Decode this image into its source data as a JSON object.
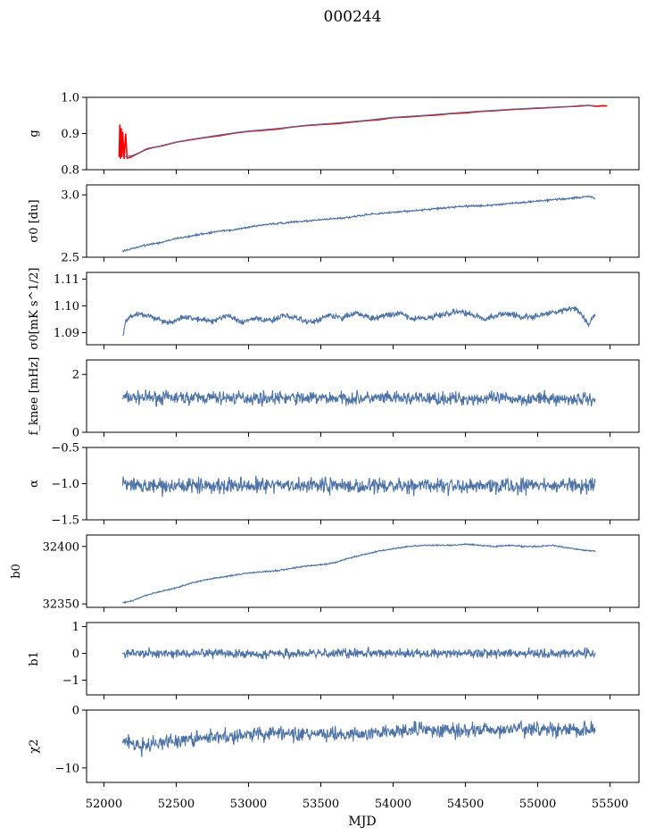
{
  "figure": {
    "title": "000244",
    "xlabel": "MJD",
    "xticks": [
      "52000",
      "52500",
      "53000",
      "53500",
      "54000",
      "54500",
      "55000",
      "55500"
    ]
  },
  "chart_data": [
    {
      "type": "line",
      "ylabel": "g",
      "xlim": [
        51880,
        55700
      ],
      "ylim": [
        0.8,
        1.0
      ],
      "yticks": [
        "0.8",
        "0.9",
        "1.0"
      ],
      "series": [
        {
          "color": "#ff0000",
          "x": [
            52105,
            52110,
            52115,
            52120,
            52125,
            52130,
            52140,
            52150,
            52160,
            52170,
            52185,
            52200,
            52250,
            52300,
            52400,
            52500,
            52600,
            52700,
            52800,
            52900,
            53000,
            53100,
            53200,
            53300,
            53400,
            53500,
            53600,
            53700,
            53800,
            53900,
            54000,
            54100,
            54200,
            54300,
            54400,
            54500,
            54600,
            54700,
            54800,
            54900,
            55000,
            55100,
            55200,
            55300,
            55350,
            55400,
            55450,
            55480
          ],
          "y": [
            0.835,
            0.925,
            0.83,
            0.915,
            0.835,
            0.905,
            0.83,
            0.9,
            0.832,
            0.833,
            0.834,
            0.838,
            0.848,
            0.858,
            0.866,
            0.876,
            0.883,
            0.889,
            0.894,
            0.901,
            0.906,
            0.909,
            0.912,
            0.918,
            0.922,
            0.925,
            0.927,
            0.931,
            0.935,
            0.938,
            0.944,
            0.946,
            0.949,
            0.951,
            0.955,
            0.957,
            0.961,
            0.963,
            0.966,
            0.968,
            0.97,
            0.972,
            0.974,
            0.976,
            0.978,
            0.975,
            0.977,
            0.976
          ]
        },
        {
          "color": "#4c72a6",
          "x": [
            52130,
            52200,
            52300,
            52400,
            52500,
            52600,
            52700,
            52800,
            52900,
            53000,
            53200,
            53400,
            53600,
            53800,
            54000,
            54200,
            54400,
            54600,
            54800,
            55000,
            55200,
            55300,
            55400
          ],
          "y": [
            0.834,
            0.84,
            0.856,
            0.867,
            0.876,
            0.884,
            0.89,
            0.896,
            0.902,
            0.907,
            0.914,
            0.923,
            0.929,
            0.936,
            0.945,
            0.95,
            0.956,
            0.962,
            0.967,
            0.971,
            0.974,
            0.978,
            0.977
          ]
        }
      ]
    },
    {
      "type": "line",
      "ylabel": "σ0 [du]",
      "xlim": [
        51880,
        55700
      ],
      "ylim": [
        2.5,
        3.08
      ],
      "yticks": [
        "2.5",
        "3.0"
      ],
      "series": [
        {
          "color": "#4c72a6",
          "noise": 0.005,
          "x": [
            52130,
            52200,
            52300,
            52400,
            52500,
            52600,
            52700,
            52800,
            52900,
            53000,
            53100,
            53200,
            53300,
            53400,
            53500,
            53600,
            53700,
            53800,
            53900,
            54000,
            54100,
            54200,
            54300,
            54400,
            54500,
            54600,
            54700,
            54800,
            54900,
            55000,
            55100,
            55200,
            55300,
            55350,
            55400
          ],
          "y": [
            2.55,
            2.57,
            2.6,
            2.62,
            2.65,
            2.67,
            2.69,
            2.71,
            2.72,
            2.74,
            2.76,
            2.77,
            2.78,
            2.79,
            2.8,
            2.81,
            2.82,
            2.84,
            2.85,
            2.86,
            2.87,
            2.88,
            2.89,
            2.9,
            2.91,
            2.91,
            2.92,
            2.93,
            2.94,
            2.95,
            2.96,
            2.97,
            2.98,
            2.99,
            2.97
          ]
        }
      ]
    },
    {
      "type": "line",
      "ylabel": "σ0[mK s^1/2]",
      "xlim": [
        51880,
        55700
      ],
      "ylim": [
        1.0855,
        1.1125
      ],
      "yticks": [
        "1.09",
        "1.10",
        "1.11"
      ],
      "series": [
        {
          "color": "#4c72a6",
          "noise": 0.0008,
          "x": [
            52130,
            52150,
            52180,
            52250,
            52350,
            52450,
            52550,
            52650,
            52750,
            52850,
            52950,
            53050,
            53150,
            53250,
            53350,
            53450,
            53550,
            53650,
            53750,
            53850,
            53950,
            54050,
            54150,
            54250,
            54350,
            54450,
            54550,
            54650,
            54750,
            54850,
            54950,
            55050,
            55150,
            55250,
            55300,
            55350,
            55400
          ],
          "y": [
            1.0885,
            1.094,
            1.096,
            1.097,
            1.0955,
            1.0935,
            1.096,
            1.095,
            1.0945,
            1.0965,
            1.094,
            1.0955,
            1.0945,
            1.0965,
            1.095,
            1.094,
            1.0965,
            1.0955,
            1.0975,
            1.095,
            1.0965,
            1.097,
            1.095,
            1.0955,
            1.097,
            1.098,
            1.0965,
            1.095,
            1.097,
            1.0965,
            1.0955,
            1.097,
            1.098,
            1.0995,
            1.097,
            1.093,
            1.0975
          ]
        }
      ]
    },
    {
      "type": "line",
      "ylabel": "f_knee [mHz]",
      "xlim": [
        51880,
        55700
      ],
      "ylim": [
        0,
        2.5
      ],
      "yticks": [
        "0",
        "2"
      ],
      "series": [
        {
          "color": "#4c72a6",
          "noise": 0.16,
          "seed": 7,
          "x": [
            52130,
            55400
          ],
          "y": [
            1.2,
            1.15
          ]
        }
      ]
    },
    {
      "type": "line",
      "ylabel": "α",
      "xlim": [
        51880,
        55700
      ],
      "ylim": [
        -1.5,
        -0.5
      ],
      "yticks": [
        "−1.5",
        "−1.0",
        "−0.5"
      ],
      "series": [
        {
          "color": "#4c72a6",
          "noise": 0.075,
          "seed": 13,
          "x": [
            52130,
            55400
          ],
          "y": [
            -1.03,
            -1.03
          ]
        }
      ]
    },
    {
      "type": "line",
      "ylabel": "b0",
      "xlim": [
        51880,
        55700
      ],
      "ylim": [
        32347,
        32410
      ],
      "yticks": [
        "32350",
        "32400"
      ],
      "series": [
        {
          "color": "#4c72a6",
          "noise": 0.4,
          "x": [
            52130,
            52200,
            52300,
            52400,
            52500,
            52600,
            52700,
            52800,
            52900,
            53000,
            53100,
            53200,
            53300,
            53400,
            53500,
            53600,
            53700,
            53800,
            53900,
            54000,
            54100,
            54200,
            54300,
            54400,
            54500,
            54600,
            54700,
            54800,
            54900,
            55000,
            55100,
            55200,
            55300,
            55400
          ],
          "y": [
            32351,
            32353,
            32358,
            32361,
            32364,
            32368,
            32371,
            32373,
            32375,
            32377,
            32378,
            32379,
            32381,
            32383,
            32384,
            32386,
            32390,
            32393,
            32396,
            32398,
            32400,
            32401,
            32401,
            32401,
            32402,
            32401,
            32400,
            32401,
            32400,
            32400,
            32401,
            32399,
            32397,
            32396
          ]
        }
      ]
    },
    {
      "type": "line",
      "ylabel": "b1",
      "xlim": [
        51880,
        55700
      ],
      "ylim": [
        -1.55,
        1.15
      ],
      "yticks": [
        "−1",
        "0",
        "1"
      ],
      "series": [
        {
          "color": "#4c72a6",
          "noise": 0.12,
          "seed": 21,
          "x": [
            52130,
            55400
          ],
          "y": [
            0.0,
            0.0
          ]
        }
      ]
    },
    {
      "type": "line",
      "ylabel": "χ2",
      "xlim": [
        51880,
        55700
      ],
      "ylim": [
        -12.5,
        0
      ],
      "yticks": [
        "−10",
        "0"
      ],
      "series": [
        {
          "color": "#4c72a6",
          "noise": 0.9,
          "seed": 33,
          "x": [
            52130,
            52250,
            52400,
            52600,
            52800,
            53000,
            53300,
            53600,
            53900,
            54200,
            54500,
            54800,
            55100,
            55400
          ],
          "y": [
            -5.0,
            -6.5,
            -5.5,
            -5.0,
            -4.5,
            -4.2,
            -4.0,
            -4.3,
            -3.8,
            -3.5,
            -3.6,
            -3.4,
            -3.3,
            -3.5
          ]
        }
      ]
    }
  ]
}
